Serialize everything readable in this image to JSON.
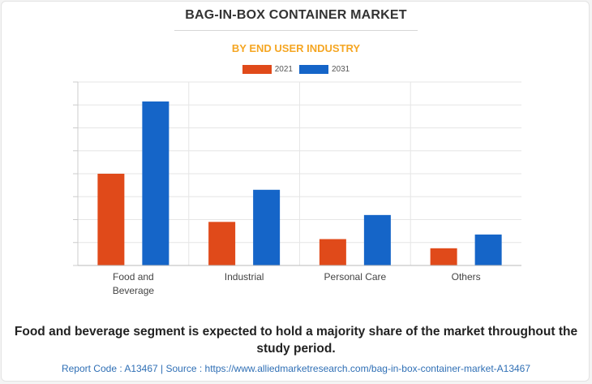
{
  "chart_data": {
    "type": "bar",
    "title": "BAG-IN-BOX CONTAINER MARKET",
    "subtitle": "BY END USER INDUSTRY",
    "categories": [
      "Food and Beverage",
      "Industrial",
      "Personal Care",
      "Others"
    ],
    "category_lines": [
      [
        "Food and",
        "Beverage"
      ],
      [
        "Industrial"
      ],
      [
        "Personal Care"
      ],
      [
        "Others"
      ]
    ],
    "series": [
      {
        "name": "2021",
        "color": "#e04a1a",
        "values": [
          4.0,
          1.9,
          1.15,
          0.75
        ]
      },
      {
        "name": "2031",
        "color": "#1565c8",
        "values": [
          7.15,
          3.3,
          2.2,
          1.35
        ]
      }
    ],
    "ylim": [
      0,
      8
    ],
    "grid": true,
    "y_tick_labels_visible": false,
    "legend_position": "top-center"
  },
  "headline": "Food and beverage segment is expected to hold a majority share of the market throughout the study period.",
  "footer": "Report Code : A13467  |  Source : https://www.alliedmarketresearch.com/bag-in-box-container-market-A13467"
}
